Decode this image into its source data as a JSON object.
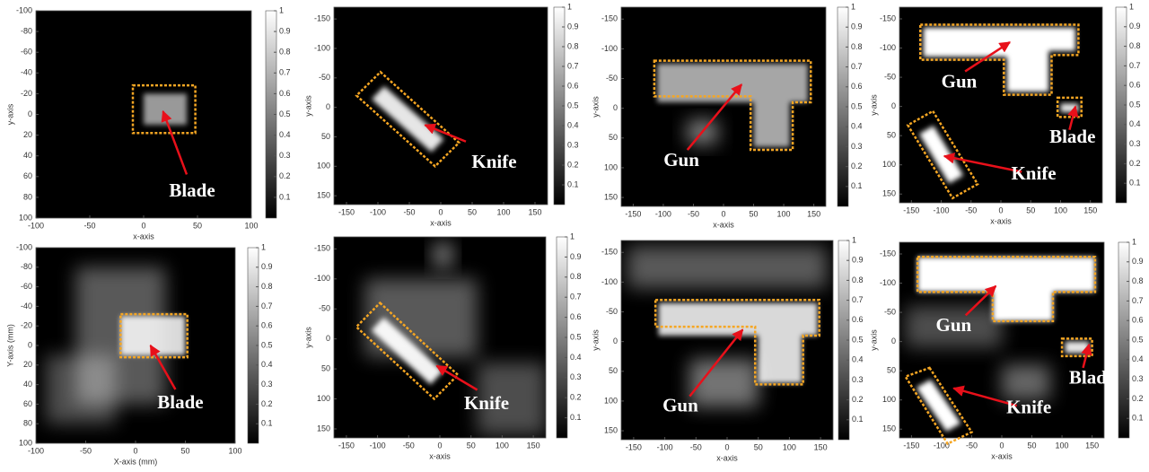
{
  "chart_data": [
    {
      "type": "heatmap",
      "xlabel": "x-axis",
      "ylabel": "y-axis",
      "xlim": [
        -100,
        100
      ],
      "ylim": [
        100,
        -100
      ],
      "xticks": [
        -100,
        -50,
        0,
        50,
        100
      ],
      "yticks": [
        -100,
        -80,
        -60,
        -40,
        -20,
        0,
        20,
        40,
        60,
        80,
        100
      ],
      "clim": [
        0,
        1
      ],
      "cticks": [
        0.1,
        0.2,
        0.3,
        0.4,
        0.5,
        0.6,
        0.7,
        0.8,
        0.9,
        1
      ],
      "annotations": [
        {
          "text": "Blade"
        }
      ]
    },
    {
      "type": "heatmap",
      "xlabel": "x-axis",
      "ylabel": "y-axis",
      "xlim": [
        -170,
        170
      ],
      "ylim": [
        165,
        -170
      ],
      "xticks": [
        -150,
        -100,
        -50,
        0,
        50,
        100,
        150
      ],
      "yticks": [
        -150,
        -100,
        -50,
        0,
        50,
        100,
        150
      ],
      "clim": [
        0,
        1
      ],
      "cticks": [
        0.1,
        0.2,
        0.3,
        0.4,
        0.5,
        0.6,
        0.7,
        0.8,
        0.9,
        1
      ],
      "annotations": [
        {
          "text": "Knife"
        }
      ]
    },
    {
      "type": "heatmap",
      "xlabel": "x-axis",
      "ylabel": "y-axis",
      "xlim": [
        -170,
        170
      ],
      "ylim": [
        165,
        -170
      ],
      "xticks": [
        -150,
        -100,
        -50,
        0,
        50,
        100,
        150
      ],
      "yticks": [
        -150,
        -100,
        -50,
        0,
        50,
        100,
        150
      ],
      "clim": [
        0,
        1
      ],
      "cticks": [
        0.1,
        0.2,
        0.3,
        0.4,
        0.5,
        0.6,
        0.7,
        0.8,
        0.9,
        1
      ],
      "annotations": [
        {
          "text": "Gun"
        }
      ]
    },
    {
      "type": "heatmap",
      "xlabel": "x-axis",
      "ylabel": "y-axis",
      "xlim": [
        -170,
        170
      ],
      "ylim": [
        165,
        -170
      ],
      "xticks": [
        -150,
        -100,
        -50,
        0,
        50,
        100,
        150
      ],
      "yticks": [
        -150,
        -100,
        -50,
        0,
        50,
        100,
        150
      ],
      "clim": [
        0,
        1
      ],
      "cticks": [
        0.1,
        0.2,
        0.3,
        0.4,
        0.5,
        0.6,
        0.7,
        0.8,
        0.9,
        1
      ],
      "annotations": [
        {
          "text": "Gun"
        },
        {
          "text": "Blade"
        },
        {
          "text": "Knife"
        }
      ]
    },
    {
      "type": "heatmap",
      "xlabel": "X-axis (mm)",
      "ylabel": "Y-axis (mm)",
      "xlim": [
        -100,
        100
      ],
      "ylim": [
        100,
        -100
      ],
      "xticks": [
        -100,
        -50,
        0,
        50,
        100
      ],
      "yticks": [
        -100,
        -80,
        -60,
        -40,
        -20,
        0,
        20,
        40,
        60,
        80,
        100
      ],
      "clim": [
        0,
        1
      ],
      "cticks": [
        0.1,
        0.2,
        0.3,
        0.4,
        0.5,
        0.6,
        0.7,
        0.8,
        0.9,
        1
      ],
      "annotations": [
        {
          "text": "Blade"
        }
      ]
    },
    {
      "type": "heatmap",
      "xlabel": "x-axis",
      "ylabel": "y-axis",
      "xlim": [
        -170,
        170
      ],
      "ylim": [
        165,
        -170
      ],
      "xticks": [
        -150,
        -100,
        -50,
        0,
        50,
        100,
        150
      ],
      "yticks": [
        -150,
        -100,
        -50,
        0,
        50,
        100,
        150
      ],
      "clim": [
        0,
        1
      ],
      "cticks": [
        0.1,
        0.2,
        0.3,
        0.4,
        0.5,
        0.6,
        0.7,
        0.8,
        0.9,
        1
      ],
      "annotations": [
        {
          "text": "Knife"
        }
      ]
    },
    {
      "type": "heatmap",
      "xlabel": "x-axis",
      "ylabel": "y-axis",
      "xlim": [
        -170,
        170
      ],
      "ylim": [
        165,
        -170
      ],
      "xticks": [
        -150,
        -100,
        -50,
        0,
        50,
        100,
        150
      ],
      "yticks": [
        -150,
        -100,
        -50,
        0,
        50,
        100,
        150
      ],
      "clim": [
        0,
        1
      ],
      "cticks": [
        0.1,
        0.2,
        0.3,
        0.4,
        0.5,
        0.6,
        0.7,
        0.8,
        0.9,
        1
      ],
      "annotations": [
        {
          "text": "Gun"
        }
      ]
    },
    {
      "type": "heatmap",
      "xlabel": "x-axis",
      "ylabel": "y-axis",
      "xlim": [
        -170,
        170
      ],
      "ylim": [
        165,
        -170
      ],
      "xticks": [
        -150,
        -100,
        -50,
        0,
        50,
        100,
        150
      ],
      "yticks": [
        -150,
        -100,
        -50,
        0,
        50,
        100,
        150
      ],
      "clim": [
        0,
        1
      ],
      "cticks": [
        0.1,
        0.2,
        0.3,
        0.4,
        0.5,
        0.6,
        0.7,
        0.8,
        0.9,
        1
      ],
      "annotations": [
        {
          "text": "Gun"
        },
        {
          "text": "Blade"
        },
        {
          "text": "Knife"
        }
      ]
    }
  ]
}
